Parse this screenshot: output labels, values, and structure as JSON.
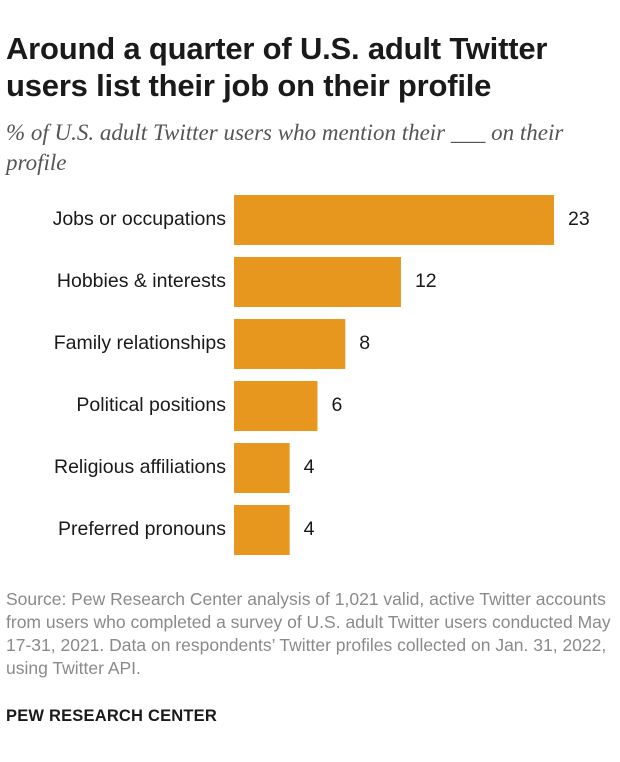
{
  "title": "Around a quarter of U.S. adult Twitter users list their job on their profile",
  "subtitle": "% of U.S. adult Twitter users who mention their ___ on their profile",
  "source": "Source: Pew Research Center analysis of 1,021 valid, active Twitter accounts from users who completed a survey of U.S. adult Twitter users conducted May 17-31, 2021. Data on respondents’ Twitter profiles collected on Jan. 31, 2022, using Twitter API.",
  "brand": "PEW RESEARCH CENTER",
  "colors": {
    "bar": "#E8971E",
    "text": "#1a1a1a",
    "muted": "#8a8a8a"
  },
  "chart_data": {
    "type": "bar",
    "orientation": "horizontal",
    "categories": [
      "Jobs or occupations",
      "Hobbies & interests",
      "Family relationships",
      "Political positions",
      "Religious affiliations",
      "Preferred pronouns"
    ],
    "values": [
      23,
      12,
      8,
      6,
      4,
      4
    ],
    "xlim": [
      0,
      23
    ],
    "grid": false,
    "data_labels": true
  }
}
